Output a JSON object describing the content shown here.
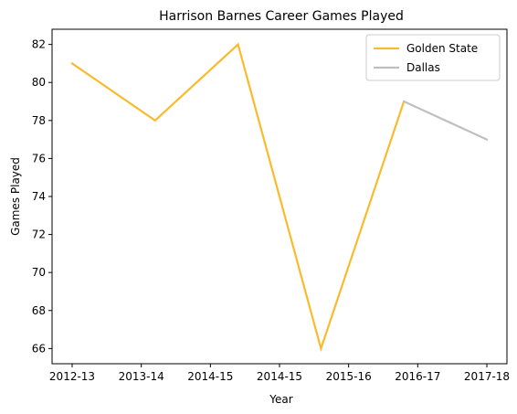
{
  "chart_data": {
    "type": "line",
    "title": "Harrison Barnes Career Games Played",
    "xlabel": "Year",
    "ylabel": "Games Played",
    "x_ticks": [
      "2012-13",
      "2013-14",
      "2014-15",
      "2014-15",
      "2015-16",
      "2016-17",
      "2017-18"
    ],
    "y_ticks": [
      66,
      68,
      70,
      72,
      74,
      76,
      78,
      80,
      82
    ],
    "xlim": [
      0,
      6.5
    ],
    "ylim": [
      65.2,
      82.8
    ],
    "series": [
      {
        "name": "Golden State",
        "color": "#f9bb2d",
        "x": [
          0,
          1.3,
          2.6,
          3.9,
          5.2
        ],
        "y": [
          81,
          78,
          82,
          66,
          79
        ]
      },
      {
        "name": "Dallas",
        "color": "#bfbfbf",
        "x": [
          5.2,
          6.5
        ],
        "y": [
          79,
          77
        ]
      }
    ],
    "grid": false,
    "legend": "top-right"
  }
}
